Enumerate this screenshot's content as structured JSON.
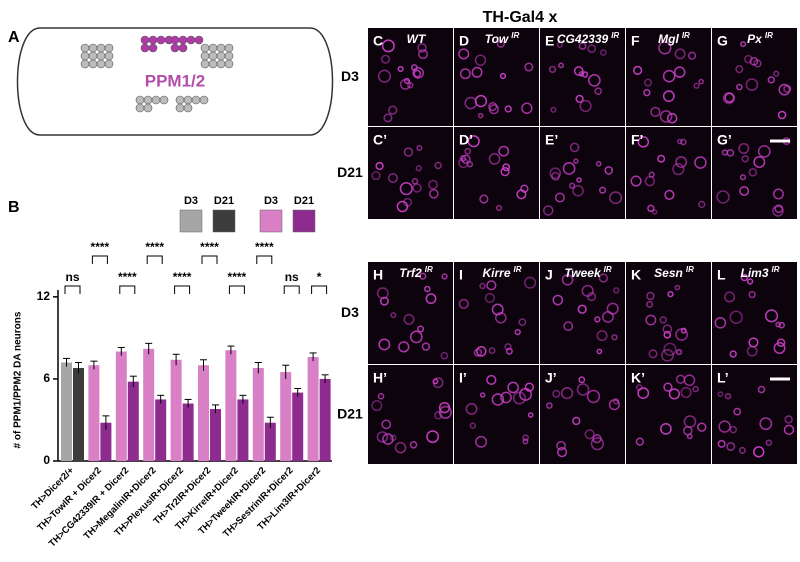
{
  "panel_labels": [
    "A",
    "B"
  ],
  "diagram": {
    "label": "PPM1/2"
  },
  "chart_data": {
    "type": "bar",
    "y_label": "# of PPM1/PPM2 DA neurons",
    "categories": [
      "TH>Dicer2/+",
      "TH>TowIR + Dicer2",
      "TH>CG42339IR + Dicer2",
      "TH>MegalinIR+Dicer2",
      "TH>PlexusIR+Dicer2",
      "TH>Tr2IR+Dicer2",
      "TH>KirreIR+Dicer2",
      "TH>TweekIR+Dicer2",
      "TH>SestrinIR+Dicer2",
      "TH>Lim3IR+Dicer2"
    ],
    "series": [
      {
        "name": "D3",
        "colors": [
          "#a6a6a6",
          "#d97fc6",
          "#d97fc6",
          "#d97fc6",
          "#d97fc6",
          "#d97fc6",
          "#d97fc6",
          "#d97fc6",
          "#d97fc6",
          "#d97fc6"
        ],
        "values": [
          7.2,
          7.0,
          8.0,
          8.2,
          7.4,
          7.0,
          8.1,
          6.8,
          6.5,
          7.6
        ],
        "errors": [
          0.3,
          0.3,
          0.3,
          0.4,
          0.4,
          0.4,
          0.3,
          0.4,
          0.5,
          0.3
        ]
      },
      {
        "name": "D21",
        "colors": [
          "#3c3c3c",
          "#8e2b8f",
          "#8e2b8f",
          "#8e2b8f",
          "#8e2b8f",
          "#8e2b8f",
          "#8e2b8f",
          "#8e2b8f",
          "#8e2b8f",
          "#8e2b8f"
        ],
        "values": [
          6.8,
          2.8,
          5.8,
          4.5,
          4.2,
          3.8,
          4.5,
          2.8,
          5.0,
          6.0
        ],
        "errors": [
          0.4,
          0.5,
          0.4,
          0.3,
          0.3,
          0.3,
          0.3,
          0.4,
          0.3,
          0.3
        ]
      }
    ],
    "legend": [
      {
        "name": "D3",
        "color": "#a6a6a6"
      },
      {
        "name": "D21",
        "color": "#3c3c3c"
      },
      {
        "name": "D3",
        "color": "#d97fc6"
      },
      {
        "name": "D21",
        "color": "#8e2b8f"
      }
    ],
    "significance": [
      "ns",
      "****",
      "****",
      "****",
      "****",
      "****",
      "****",
      "****",
      "ns",
      "*"
    ],
    "ylim": [
      0,
      12.5
    ],
    "yticks": [
      0,
      6,
      12
    ]
  },
  "images": {
    "title": "TH-Gal4  x",
    "row_labels": [
      "D3",
      "D21"
    ],
    "blocks": [
      {
        "columns": [
          {
            "gene": "WT"
          },
          {
            "gene": "Tow",
            "sup": "IR"
          },
          {
            "gene": "CG42339",
            "sup": "IR"
          },
          {
            "gene": "Mgl",
            "sup": "IR"
          },
          {
            "gene": "Px",
            "sup": "IR"
          }
        ],
        "letters": [
          [
            "C",
            "D",
            "E",
            "F",
            "G"
          ],
          [
            "C’",
            "D’",
            "E’",
            "F’",
            "G’"
          ]
        ]
      },
      {
        "columns": [
          {
            "gene": "Trf2",
            "sup": "IR"
          },
          {
            "gene": "Kirre",
            "sup": "IR"
          },
          {
            "gene": "Tweek",
            "sup": "IR"
          },
          {
            "gene": "Sesn",
            "sup": "IR"
          },
          {
            "gene": "Lim3",
            "sup": "IR"
          }
        ],
        "letters": [
          [
            "H",
            "I",
            "J",
            "K",
            "L"
          ],
          [
            "H’",
            "I’",
            "J’",
            "K’",
            "L’"
          ]
        ]
      }
    ]
  }
}
